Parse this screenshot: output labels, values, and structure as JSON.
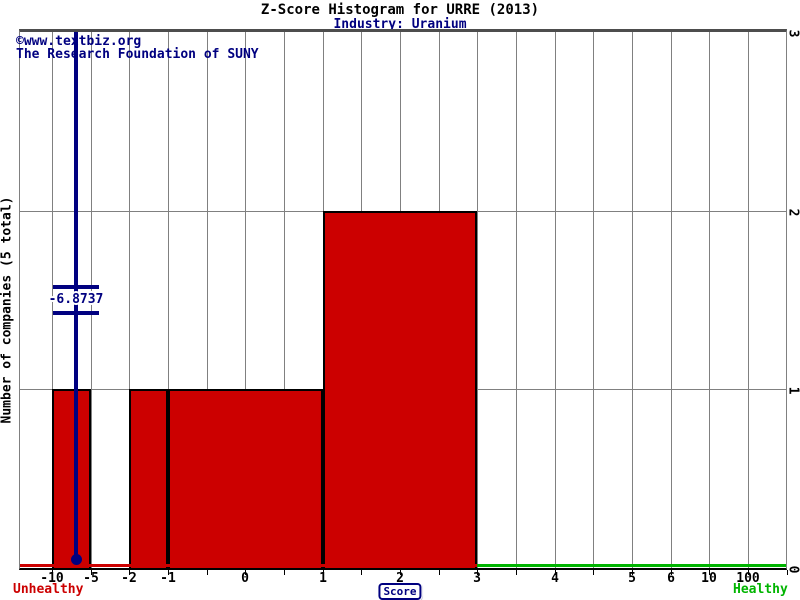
{
  "watermark": {
    "line1": "©www.textbiz.org",
    "line2": "The Research Foundation of SUNY"
  },
  "chart_data": {
    "type": "bar",
    "title": "Z-Score Histogram for URRE (2013)",
    "subtitle": "Industry: Uranium",
    "xlabel": "Score",
    "ylabel": "Number of companies (5 total)",
    "total_companies": 5,
    "ylim": [
      0,
      3
    ],
    "grid": true,
    "y_right_ticks": [
      "3",
      "2",
      "1",
      "0"
    ],
    "n_grid_lines": 20,
    "x_ticks": [
      {
        "label": "-10",
        "value": -10,
        "grid_index": 0
      },
      {
        "label": "-5",
        "value": -5,
        "grid_index": 1
      },
      {
        "label": "-2",
        "value": -2,
        "grid_index": 2
      },
      {
        "label": "-1",
        "value": -1,
        "grid_index": 3
      },
      {
        "label": "0",
        "value": 0,
        "grid_index": 5
      },
      {
        "label": "1",
        "value": 1,
        "grid_index": 7
      },
      {
        "label": "2",
        "value": 2,
        "grid_index": 9
      },
      {
        "label": "3",
        "value": 3,
        "grid_index": 11
      },
      {
        "label": "4",
        "value": 4,
        "grid_index": 13
      },
      {
        "label": "5",
        "value": 5,
        "grid_index": 15
      },
      {
        "label": "6",
        "value": 6,
        "grid_index": 16
      },
      {
        "label": "10",
        "value": 10,
        "grid_index": 17
      },
      {
        "label": "100",
        "value": 100,
        "grid_index": 18
      }
    ],
    "bins": [
      {
        "x_from": -10,
        "x_to": -5,
        "count": 1
      },
      {
        "x_from": -2,
        "x_to": -1,
        "count": 1
      },
      {
        "x_from": -1,
        "x_to": 1,
        "count": 1
      },
      {
        "x_from": 1,
        "x_to": 3,
        "count": 2
      }
    ],
    "marker": {
      "value": -6.8737,
      "label": "-6.8737"
    },
    "zones": {
      "unhealthy": {
        "label": "Unhealthy",
        "range_max": 3,
        "color": "#cc0000"
      },
      "healthy": {
        "label": "Healthy",
        "range_min": 3,
        "color": "#00b400"
      }
    },
    "colors": {
      "bar_fill": "#cc0000",
      "bar_border": "#000000",
      "grid_line": "#808080",
      "marker": "#000080",
      "subtitle": "#000080",
      "watermark": "#000080"
    }
  }
}
